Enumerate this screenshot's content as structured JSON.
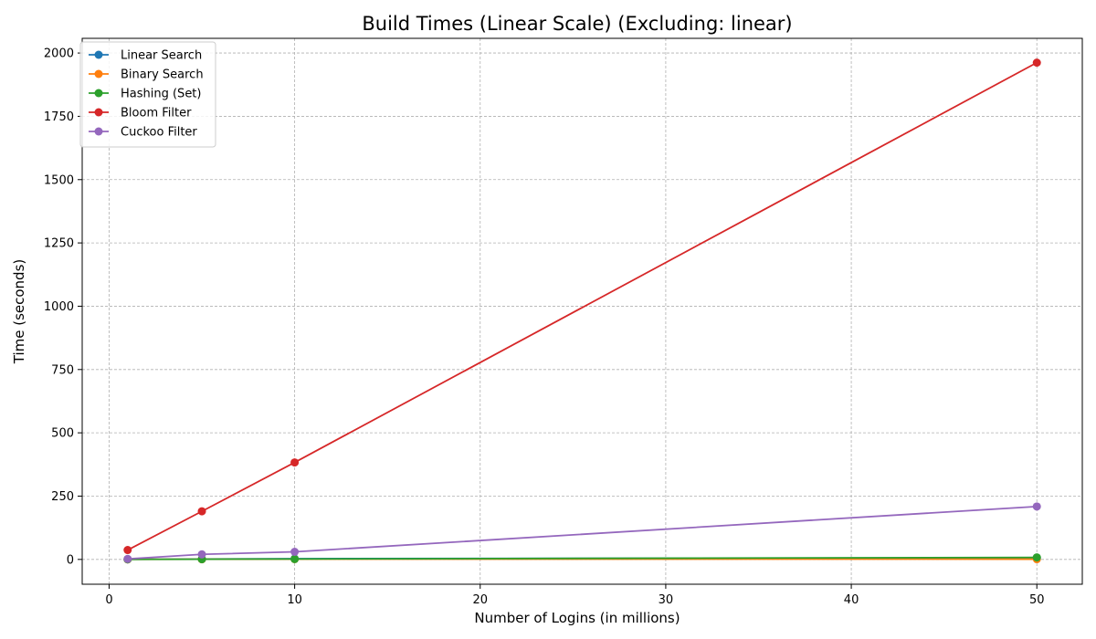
{
  "chart_data": {
    "type": "line",
    "title": "Build Times (Linear Scale) (Excluding: linear)",
    "xlabel": "Number of Logins (in millions)",
    "ylabel": "Time (seconds)",
    "xlim": [
      -1.45,
      52.45
    ],
    "ylim": [
      -98,
      2058
    ],
    "xticks": [
      0,
      10,
      20,
      30,
      40,
      50
    ],
    "yticks": [
      0,
      250,
      500,
      750,
      1000,
      1250,
      1500,
      1750,
      2000
    ],
    "grid": true,
    "legend_position": "top-left",
    "x": [
      1,
      5,
      10,
      50
    ],
    "series": [
      {
        "name": "Linear Search",
        "color": "#1f77b4",
        "values": [
          0.3,
          1.5,
          3,
          6
        ]
      },
      {
        "name": "Binary Search",
        "color": "#ff7f0e",
        "values": [
          0.2,
          0.6,
          1.2,
          1
        ]
      },
      {
        "name": "Hashing (Set)",
        "color": "#2ca02c",
        "values": [
          0.3,
          0.8,
          1.5,
          8
        ]
      },
      {
        "name": "Bloom Filter",
        "color": "#d62728",
        "values": [
          37,
          190,
          383,
          1962
        ]
      },
      {
        "name": "Cuckoo Filter",
        "color": "#9467bd",
        "values": [
          2,
          20,
          30,
          209
        ]
      }
    ]
  }
}
